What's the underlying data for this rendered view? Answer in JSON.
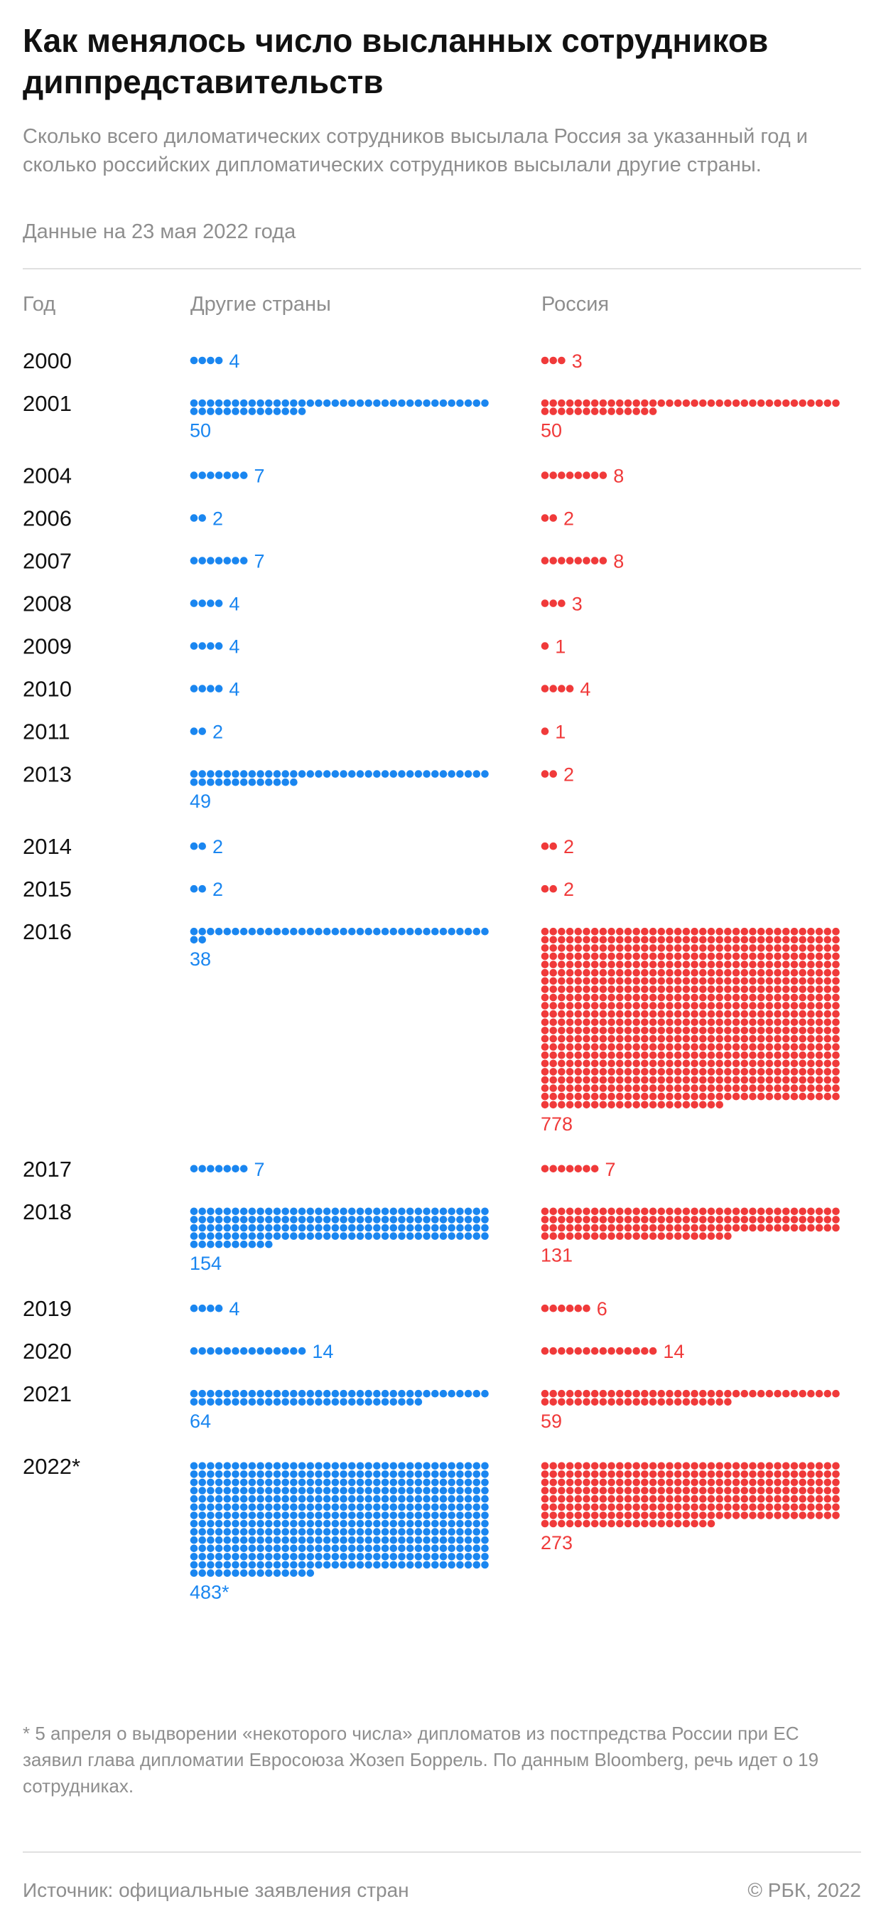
{
  "title": "Как менялось число высланных сотрудников диппредставительств",
  "subtitle": "Сколько всего диломатических сотрудников высылала Россия за указанный год и сколько российских дипломатических сотрудников высылали другие страны.",
  "date_note": "Данные на 23 мая 2022 года",
  "footnote": "* 5 апреля о выдворении «некоторого числа» дипломатов из постпредства России при ЕС заявил глава дипломатии Евросоюза Жозеп Боррель. По данным Bloomberg, речь идет о 19 сотрудниках.",
  "source": "Источник: официальные заявления стран",
  "copyright": "© РБК, 2022",
  "colors": {
    "other": "#1a86f0",
    "russia": "#f03a3a"
  },
  "chart_data": {
    "type": "table",
    "column_headers": {
      "year": "Год",
      "other": "Другие страны",
      "russia": "Россия"
    },
    "dots_per_row": 36,
    "rows": [
      {
        "year": "2000",
        "other": 4,
        "russia": 3
      },
      {
        "year": "2001",
        "other": 50,
        "russia": 50
      },
      {
        "year": "2004",
        "other": 7,
        "russia": 8
      },
      {
        "year": "2006",
        "other": 2,
        "russia": 2
      },
      {
        "year": "2007",
        "other": 7,
        "russia": 8
      },
      {
        "year": "2008",
        "other": 4,
        "russia": 3
      },
      {
        "year": "2009",
        "other": 4,
        "russia": 1
      },
      {
        "year": "2010",
        "other": 4,
        "russia": 4
      },
      {
        "year": "2011",
        "other": 2,
        "russia": 1
      },
      {
        "year": "2013",
        "other": 49,
        "russia": 2
      },
      {
        "year": "2014",
        "other": 2,
        "russia": 2
      },
      {
        "year": "2015",
        "other": 2,
        "russia": 2
      },
      {
        "year": "2016",
        "other": 38,
        "russia": 778
      },
      {
        "year": "2017",
        "other": 7,
        "russia": 7
      },
      {
        "year": "2018",
        "other": 154,
        "russia": 131
      },
      {
        "year": "2019",
        "other": 4,
        "russia": 6
      },
      {
        "year": "2020",
        "other": 14,
        "russia": 14
      },
      {
        "year": "2021",
        "other": 64,
        "russia": 59
      },
      {
        "year": "2022*",
        "other": 483,
        "russia": 273,
        "other_label": "483*"
      }
    ]
  }
}
